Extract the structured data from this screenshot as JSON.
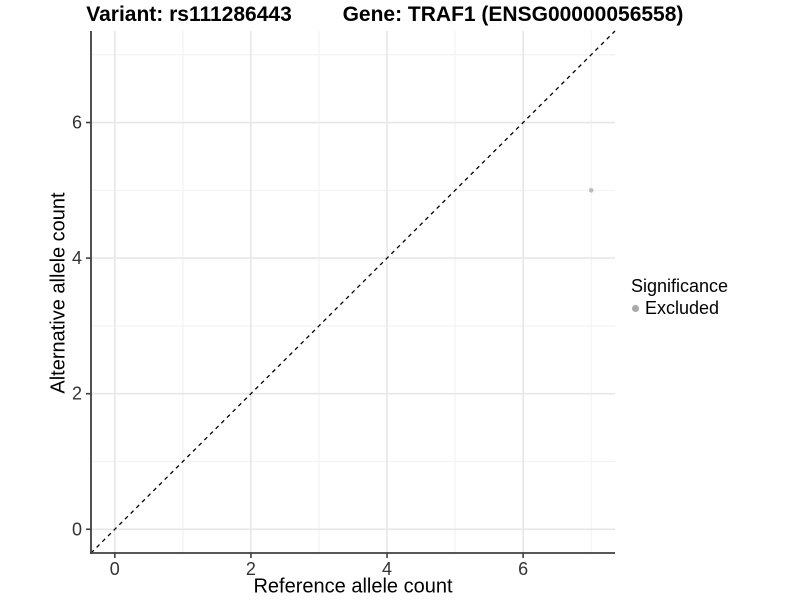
{
  "chart_data": {
    "type": "scatter",
    "title_left": "Variant: rs111286443",
    "title_right": "Gene: TRAF1 (ENSG00000056558)",
    "xlabel": "Reference allele count",
    "ylabel": "Alternative allele count",
    "xlim": [
      -0.35,
      7.35
    ],
    "ylim": [
      -0.35,
      7.35
    ],
    "x_major_ticks": [
      0,
      2,
      4,
      6
    ],
    "y_major_ticks": [
      0,
      2,
      4,
      6
    ],
    "x_minor_ticks": [
      1,
      3,
      5,
      7
    ],
    "y_minor_ticks": [
      1,
      3,
      5,
      7
    ],
    "grid": true,
    "reference_line": {
      "kind": "identity",
      "style": "dashed",
      "from": -0.35,
      "to": 7.35,
      "color": "#000000"
    },
    "series": [
      {
        "name": "Excluded",
        "color": "#bdbdbd",
        "points": [
          {
            "x": 7,
            "y": 5
          }
        ]
      }
    ],
    "legend": {
      "title": "Significance",
      "position": "right",
      "items": [
        {
          "label": "Excluded",
          "color": "#a9a9a9"
        }
      ]
    },
    "colors": {
      "background": "#ffffff",
      "grid_major": "#e7e7e7",
      "grid_minor": "#f3f3f3",
      "axis_line": "#3f3f3f",
      "tick_label": "#333333"
    }
  }
}
